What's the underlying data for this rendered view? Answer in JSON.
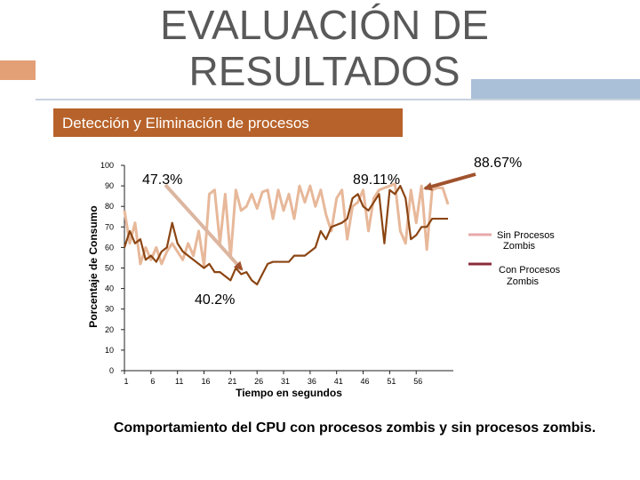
{
  "slide": {
    "title_line1": "EVALUACIÓN DE",
    "title_line2": "RESULTADOS",
    "subtitle": "Detección y Eliminación de procesos",
    "caption": "Comportamiento del CPU con procesos zombis y sin procesos zombis.",
    "accent_color": "#b7622a"
  },
  "chart_data": {
    "type": "line",
    "xlabel": "Tiempo en segundos",
    "ylabel": "Porcentaje de Consumo",
    "ylim": [
      0,
      100
    ],
    "yticks": [
      0,
      10,
      20,
      30,
      40,
      50,
      60,
      70,
      80,
      90,
      100
    ],
    "x_tick_labels": [
      "1",
      "6",
      "11",
      "16",
      "21",
      "26",
      "31",
      "36",
      "41",
      "46",
      "51",
      "56"
    ],
    "x_tick_values": [
      1,
      6,
      11,
      16,
      21,
      26,
      31,
      36,
      41,
      46,
      51,
      56
    ],
    "xlim": [
      1,
      63
    ],
    "series": [
      {
        "name": "Sin Procesos Zombis",
        "color": "#e7b89a",
        "values": [
          78,
          62,
          72,
          52,
          60,
          54,
          60,
          52,
          58,
          62,
          58,
          54,
          62,
          56,
          68,
          51,
          86,
          88,
          62,
          86,
          55,
          88,
          78,
          80,
          86,
          79,
          87,
          88,
          74,
          88,
          78,
          86,
          74,
          90,
          82,
          90,
          80,
          88,
          76,
          68,
          84,
          88,
          64,
          80,
          82,
          88,
          68,
          84,
          88,
          89,
          90,
          91,
          68,
          62,
          88,
          72,
          90,
          59,
          88,
          89,
          89,
          81
        ]
      },
      {
        "name": "Con Procesos Zombis",
        "color": "#8b4513",
        "values": [
          60,
          68,
          62,
          64,
          54,
          56,
          53,
          58,
          60,
          72,
          62,
          58,
          56,
          54,
          52,
          50,
          52,
          48,
          48,
          46,
          44,
          50,
          47,
          48,
          44,
          42,
          47,
          52,
          53,
          53,
          53,
          53,
          56,
          56,
          56,
          58,
          60,
          68,
          64,
          70,
          71,
          72,
          74,
          84,
          86,
          80,
          78,
          82,
          86,
          62,
          88,
          86,
          90,
          84,
          64,
          66,
          70,
          70,
          74,
          74,
          74,
          74
        ]
      }
    ],
    "annotations": [
      {
        "text": "47.3%"
      },
      {
        "text": "89.11%"
      },
      {
        "text": "40.2%"
      },
      {
        "text": "88.67%"
      }
    ],
    "legend": [
      {
        "label_line1": "Sin Procesos",
        "label_line2": "Zombis",
        "color": "#e7a9a9"
      },
      {
        "label_line1": "Con Procesos",
        "label_line2": "Zombis",
        "color": "#8b2e3b"
      }
    ]
  }
}
